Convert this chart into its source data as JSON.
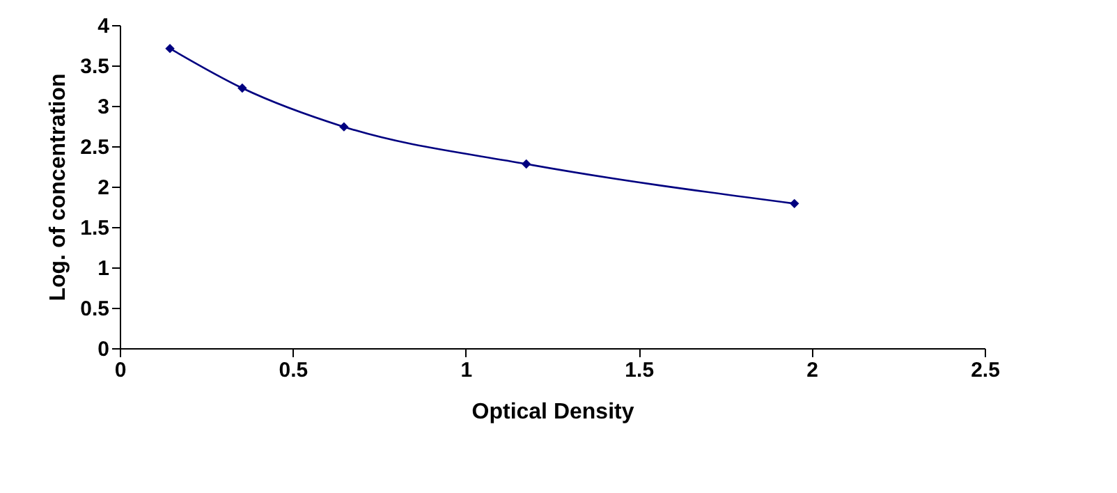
{
  "chart_data": {
    "type": "line",
    "xlabel": "Optical Density",
    "ylabel": "Log. of concentration",
    "x": [
      0.145,
      0.354,
      0.648,
      1.175,
      1.95
    ],
    "series": [
      {
        "color": "#000080",
        "values": [
          3.71,
          3.22,
          2.74,
          2.28,
          1.79
        ]
      }
    ],
    "xlim": [
      0,
      2.5
    ],
    "xticks": [
      0,
      0.5,
      1,
      1.5,
      2,
      2.5
    ],
    "ylim": [
      0,
      4
    ],
    "yticks": [
      0,
      0.5,
      1,
      1.5,
      2,
      2.5,
      3,
      3.5,
      4
    ],
    "grid": false,
    "marker": "diamond",
    "line_style": "solid"
  }
}
